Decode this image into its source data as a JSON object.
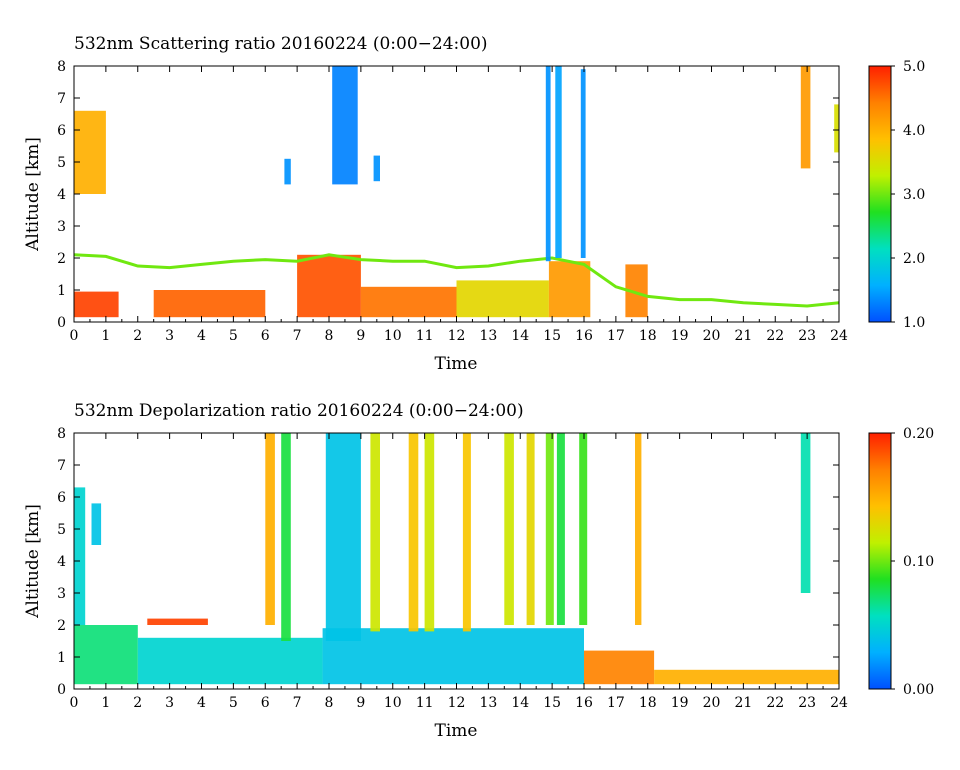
{
  "chart_data": [
    {
      "type": "heatmap",
      "title": "532nm Scattering ratio  20160224 (0:00−24:00)",
      "xlabel": "Time",
      "ylabel": "Altitude [km]",
      "xlim": [
        0,
        24
      ],
      "ylim": [
        0,
        8
      ],
      "x_ticks": [
        "0",
        "1",
        "2",
        "3",
        "4",
        "5",
        "6",
        "7",
        "8",
        "9",
        "10",
        "11",
        "12",
        "13",
        "14",
        "15",
        "16",
        "17",
        "18",
        "19",
        "20",
        "21",
        "22",
        "23",
        "24"
      ],
      "y_ticks": [
        "0",
        "1",
        "2",
        "3",
        "4",
        "5",
        "6",
        "7",
        "8"
      ],
      "colorbar": {
        "min": 1.0,
        "max": 5.0,
        "labels": [
          "1.0",
          "2.0",
          "3.0",
          "4.0",
          "5.0"
        ],
        "colors": [
          "#0050ff",
          "#00b0ff",
          "#00e0c0",
          "#20e020",
          "#c0f000",
          "#ffc000",
          "#ff8000",
          "#ff2000"
        ]
      },
      "features": [
        {
          "kind": "boundary_layer",
          "start": 0.0,
          "end": 1.4,
          "top_km": 0.95,
          "value": 4.8
        },
        {
          "kind": "boundary_layer",
          "start": 2.5,
          "end": 6.0,
          "top_km": 1.0,
          "value": 4.6
        },
        {
          "kind": "boundary_layer",
          "start": 7.0,
          "end": 9.0,
          "top_km": 2.1,
          "value": 4.7
        },
        {
          "kind": "boundary_layer",
          "start": 9.0,
          "end": 12.0,
          "top_km": 1.1,
          "value": 4.5
        },
        {
          "kind": "boundary_layer",
          "start": 12.0,
          "end": 14.9,
          "top_km": 1.3,
          "value": 3.6
        },
        {
          "kind": "boundary_layer",
          "start": 14.9,
          "end": 16.2,
          "top_km": 1.9,
          "value": 4.2
        },
        {
          "kind": "boundary_layer",
          "start": 17.3,
          "end": 18.0,
          "top_km": 1.8,
          "value": 4.4
        },
        {
          "kind": "layer_top_line",
          "start": 0.0,
          "end": 24.0,
          "km": [
            2.1,
            2.05,
            1.75,
            1.7,
            1.8,
            1.9,
            1.95,
            1.9,
            2.1,
            1.95,
            1.9,
            1.9,
            1.7,
            1.75,
            1.9,
            2.0,
            1.8,
            1.1,
            0.8,
            0.7,
            0.7,
            0.6,
            0.55,
            0.5,
            0.6
          ],
          "value": 3.0
        },
        {
          "kind": "cloud",
          "start": 0.0,
          "end": 1.0,
          "bottom_km": 4.0,
          "top_km": 6.6,
          "value": 4.0
        },
        {
          "kind": "cloud",
          "start": 6.6,
          "end": 6.8,
          "bottom_km": 4.3,
          "top_km": 5.1,
          "value": 1.4
        },
        {
          "kind": "cloud",
          "start": 8.1,
          "end": 8.9,
          "bottom_km": 4.3,
          "top_km": 8.0,
          "value": 1.3
        },
        {
          "kind": "cloud",
          "start": 9.4,
          "end": 9.6,
          "bottom_km": 4.4,
          "top_km": 5.2,
          "value": 1.4
        },
        {
          "kind": "cloud",
          "start": 14.8,
          "end": 14.95,
          "bottom_km": 1.9,
          "top_km": 8.0,
          "value": 1.4
        },
        {
          "kind": "cloud",
          "start": 15.1,
          "end": 15.3,
          "bottom_km": 2.0,
          "top_km": 8.0,
          "value": 1.5
        },
        {
          "kind": "cloud",
          "start": 15.9,
          "end": 16.05,
          "bottom_km": 2.0,
          "top_km": 7.9,
          "value": 1.4
        },
        {
          "kind": "cloud",
          "start": 22.8,
          "end": 23.1,
          "bottom_km": 4.8,
          "top_km": 8.0,
          "value": 4.2
        },
        {
          "kind": "cloud",
          "start": 23.85,
          "end": 24.0,
          "bottom_km": 5.3,
          "top_km": 6.8,
          "value": 3.5
        }
      ]
    },
    {
      "type": "heatmap",
      "title": "532nm Depolarization ratio  20160224 (0:00−24:00)",
      "xlabel": "Time",
      "ylabel": "Altitude [km]",
      "xlim": [
        0,
        24
      ],
      "ylim": [
        0,
        8
      ],
      "x_ticks": [
        "0",
        "1",
        "2",
        "3",
        "4",
        "5",
        "6",
        "7",
        "8",
        "9",
        "10",
        "11",
        "12",
        "13",
        "14",
        "15",
        "16",
        "17",
        "18",
        "19",
        "20",
        "21",
        "22",
        "23",
        "24"
      ],
      "y_ticks": [
        "0",
        "1",
        "2",
        "3",
        "4",
        "5",
        "6",
        "7",
        "8"
      ],
      "colorbar": {
        "min": 0.0,
        "max": 0.2,
        "labels": [
          "0.00",
          "0.10",
          "0.20"
        ],
        "colors": [
          "#0050ff",
          "#00b0ff",
          "#00e0c0",
          "#20e020",
          "#c0f000",
          "#ffc000",
          "#ff8000",
          "#ff2000"
        ]
      },
      "features": [
        {
          "kind": "boundary_layer",
          "start": 0.0,
          "end": 2.0,
          "top_km": 2.0,
          "value": 0.07
        },
        {
          "kind": "boundary_layer",
          "start": 2.0,
          "end": 7.8,
          "top_km": 1.6,
          "value": 0.05
        },
        {
          "kind": "boundary_layer",
          "start": 7.8,
          "end": 16.0,
          "top_km": 1.9,
          "value": 0.04
        },
        {
          "kind": "boundary_layer",
          "start": 16.0,
          "end": 18.2,
          "top_km": 1.2,
          "value": 0.17
        },
        {
          "kind": "boundary_layer",
          "start": 18.2,
          "end": 24.0,
          "top_km": 0.6,
          "value": 0.15
        },
        {
          "kind": "cloud",
          "start": 0.0,
          "end": 0.35,
          "bottom_km": 2.0,
          "top_km": 6.3,
          "value": 0.05
        },
        {
          "kind": "cloud",
          "start": 0.55,
          "end": 0.85,
          "bottom_km": 4.5,
          "top_km": 5.8,
          "value": 0.04
        },
        {
          "kind": "cloud",
          "start": 2.3,
          "end": 4.2,
          "bottom_km": 2.0,
          "top_km": 2.2,
          "value": 0.19
        },
        {
          "kind": "cloud",
          "start": 6.0,
          "end": 6.3,
          "bottom_km": 2.0,
          "top_km": 8.0,
          "value": 0.15
        },
        {
          "kind": "cloud",
          "start": 6.5,
          "end": 6.8,
          "bottom_km": 1.5,
          "top_km": 8.0,
          "value": 0.08
        },
        {
          "kind": "cloud",
          "start": 7.9,
          "end": 9.0,
          "bottom_km": 1.5,
          "top_km": 8.0,
          "value": 0.04
        },
        {
          "kind": "cloud",
          "start": 9.3,
          "end": 9.6,
          "bottom_km": 1.8,
          "top_km": 8.0,
          "value": 0.12
        },
        {
          "kind": "cloud",
          "start": 10.5,
          "end": 10.8,
          "bottom_km": 1.8,
          "top_km": 8.0,
          "value": 0.14
        },
        {
          "kind": "cloud",
          "start": 11.0,
          "end": 11.3,
          "bottom_km": 1.8,
          "top_km": 8.0,
          "value": 0.12
        },
        {
          "kind": "cloud",
          "start": 12.2,
          "end": 12.45,
          "bottom_km": 1.8,
          "top_km": 8.0,
          "value": 0.14
        },
        {
          "kind": "cloud",
          "start": 13.5,
          "end": 13.8,
          "bottom_km": 2.0,
          "top_km": 8.0,
          "value": 0.12
        },
        {
          "kind": "cloud",
          "start": 14.2,
          "end": 14.45,
          "bottom_km": 2.0,
          "top_km": 8.0,
          "value": 0.13
        },
        {
          "kind": "cloud",
          "start": 14.8,
          "end": 15.05,
          "bottom_km": 2.0,
          "top_km": 8.0,
          "value": 0.1
        },
        {
          "kind": "cloud",
          "start": 15.15,
          "end": 15.4,
          "bottom_km": 2.0,
          "top_km": 8.0,
          "value": 0.08
        },
        {
          "kind": "cloud",
          "start": 15.85,
          "end": 16.1,
          "bottom_km": 2.0,
          "top_km": 8.0,
          "value": 0.09
        },
        {
          "kind": "cloud",
          "start": 17.6,
          "end": 17.8,
          "bottom_km": 2.0,
          "top_km": 8.0,
          "value": 0.15
        },
        {
          "kind": "cloud",
          "start": 22.8,
          "end": 23.1,
          "bottom_km": 3.0,
          "top_km": 8.0,
          "value": 0.06
        }
      ]
    }
  ]
}
